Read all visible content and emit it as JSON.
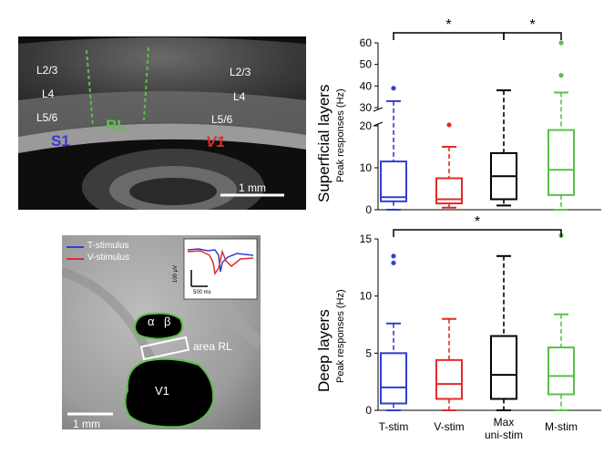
{
  "histology_panel": {
    "layer_labels_left": [
      "L2/3",
      "L4",
      "L5/6"
    ],
    "layer_labels_right": [
      "L2/3",
      "L4",
      "L5/6"
    ],
    "area_labels": {
      "s1": "S1",
      "rl": "RL",
      "v1": "V1"
    },
    "scale_bar": "1 mm",
    "colors": {
      "s1": "#3a3adb",
      "rl": "#5bbf4a",
      "v1": "#e02a2a",
      "boundary": "#5bbf4a"
    }
  },
  "imaging_panel": {
    "legend": [
      "T-stimulus",
      "V-stimulus"
    ],
    "legend_colors": [
      "#2f3fd0",
      "#e02a2a"
    ],
    "inset_scale_y": "100 μV",
    "inset_scale_x": "500 ms",
    "barrel_labels": [
      "α",
      "β"
    ],
    "area_label": "area RL",
    "v1_label": "V1",
    "scale_bar": "1 mm"
  },
  "chart_data": [
    {
      "type": "box",
      "title": "Superficial layers",
      "ylabel": "Peak responses (Hz)",
      "categories": [
        "T-stim",
        "V-stim",
        "Max uni-stim",
        "M-stim"
      ],
      "colors": [
        "#2f3fd0",
        "#e02a2a",
        "#000000",
        "#5bbf4a"
      ],
      "y_break": [
        20,
        30
      ],
      "ylim": [
        0,
        60
      ],
      "yticks": [
        0,
        10,
        20,
        30,
        40,
        50,
        60
      ],
      "boxes": [
        {
          "whisker_low": 0,
          "q1": 2,
          "median": 3,
          "q3": 11.5,
          "whisker_high": 33,
          "outliers": [
            39
          ]
        },
        {
          "whisker_low": 0.5,
          "q1": 1.5,
          "median": 2.5,
          "q3": 7.5,
          "whisker_high": 15,
          "outliers": [
            22
          ]
        },
        {
          "whisker_low": 1,
          "q1": 2.5,
          "median": 8,
          "q3": 13.5,
          "whisker_high": 38,
          "outliers": []
        },
        {
          "whisker_low": 0,
          "q1": 3.5,
          "median": 9.5,
          "q3": 19,
          "whisker_high": 37,
          "outliers": [
            45,
            60
          ]
        }
      ],
      "significance": [
        {
          "from": 0,
          "to": 2,
          "label": "*"
        },
        {
          "from": 2,
          "to": 3,
          "label": "*"
        }
      ]
    },
    {
      "type": "box",
      "title": "Deep layers",
      "ylabel": "Peak responses (Hz)",
      "categories": [
        "T-stim",
        "V-stim",
        "Max uni-stim",
        "M-stim"
      ],
      "colors": [
        "#2f3fd0",
        "#e02a2a",
        "#000000",
        "#5bbf4a"
      ],
      "ylim": [
        0,
        15
      ],
      "yticks": [
        0,
        5,
        10,
        15
      ],
      "boxes": [
        {
          "whisker_low": 0,
          "q1": 0.6,
          "median": 2,
          "q3": 5,
          "whisker_high": 7.6,
          "outliers": [
            12.9,
            13.5
          ]
        },
        {
          "whisker_low": 0,
          "q1": 1,
          "median": 2.3,
          "q3": 4.4,
          "whisker_high": 8,
          "outliers": []
        },
        {
          "whisker_low": 0,
          "q1": 1,
          "median": 3.1,
          "q3": 6.5,
          "whisker_high": 13.5,
          "outliers": []
        },
        {
          "whisker_low": 0,
          "q1": 1.4,
          "median": 3,
          "q3": 5.5,
          "whisker_high": 8.4,
          "outliers": [
            15.3
          ]
        }
      ],
      "significance": [
        {
          "from": 0,
          "to": 3,
          "label": "*"
        }
      ]
    }
  ],
  "xtick_labels": [
    "T-stim",
    "V-stim",
    "Max",
    "uni-stim",
    "M-stim"
  ]
}
